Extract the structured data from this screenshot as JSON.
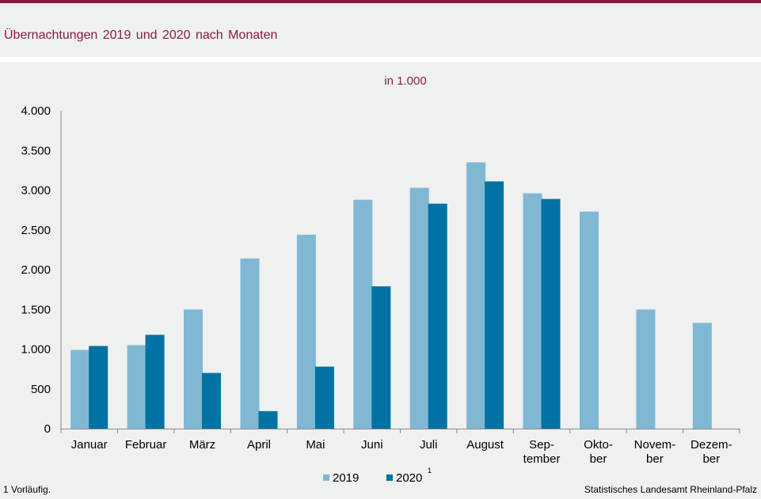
{
  "header": {
    "title": "Übernachtungen 2019 und 2020 nach Monaten"
  },
  "footer": {
    "footnote": "1 Vorläufig.",
    "source": "Statistisches Landesamt Rheinland-Pfalz"
  },
  "colors": {
    "accent": "#8a1e3a",
    "series_2019": "#80b8d4",
    "series_2020": "#0072a3"
  },
  "chart_data": {
    "type": "bar",
    "subtitle": "in 1.000",
    "categories": [
      [
        "Januar"
      ],
      [
        "Februar"
      ],
      [
        "März"
      ],
      [
        "April"
      ],
      [
        "Mai"
      ],
      [
        "Juni"
      ],
      [
        "Juli"
      ],
      [
        "August"
      ],
      [
        "Sep-",
        "tember"
      ],
      [
        "Okto-",
        "ber"
      ],
      [
        "Novem-",
        "ber"
      ],
      [
        "Dezem-",
        "ber"
      ]
    ],
    "series": [
      {
        "name": "2019",
        "superscript": "",
        "values": [
          990,
          1050,
          1500,
          2140,
          2440,
          2880,
          3030,
          3350,
          2960,
          2730,
          1500,
          1330
        ]
      },
      {
        "name": "2020",
        "superscript": "1",
        "values": [
          1040,
          1180,
          700,
          220,
          780,
          1790,
          2830,
          3110,
          2890,
          null,
          null,
          null
        ]
      }
    ],
    "ylim": [
      0,
      4000
    ],
    "yticks": [
      {
        "value": 0,
        "label": "0"
      },
      {
        "value": 500,
        "label": "500"
      },
      {
        "value": 1000,
        "label": "1.000"
      },
      {
        "value": 1500,
        "label": "1.500"
      },
      {
        "value": 2000,
        "label": "2.000"
      },
      {
        "value": 2500,
        "label": "2.500"
      },
      {
        "value": 3000,
        "label": "3.000"
      },
      {
        "value": 3500,
        "label": "3.500"
      },
      {
        "value": 4000,
        "label": "4.000"
      }
    ],
    "grid": false,
    "legend_position": "bottom-center"
  }
}
